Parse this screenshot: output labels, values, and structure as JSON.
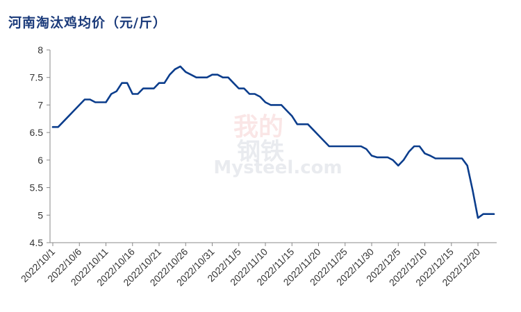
{
  "chart_data": {
    "type": "line",
    "title": "河南淘汰鸡均价（元/斤）",
    "xlabel": "",
    "ylabel": "",
    "ylim": [
      4.5,
      8
    ],
    "yticks": [
      "4.5",
      "5",
      "5.5",
      "6",
      "6.5",
      "7",
      "7.5",
      "8"
    ],
    "xticks": [
      "2022/10/1",
      "2022/10/6",
      "2022/10/11",
      "2022/10/16",
      "2022/10/21",
      "2022/10/26",
      "2022/10/31",
      "2022/11/5",
      "2022/11/10",
      "2022/11/15",
      "2022/11/20",
      "2022/11/25",
      "2022/11/30",
      "2022/12/5",
      "2022/12/10",
      "2022/12/15",
      "2022/12/20"
    ],
    "grid": false,
    "legend": "none",
    "watermark": {
      "top": "我的",
      "middle": "钢铁",
      "bottom": "Mysteel.com"
    },
    "series": [
      {
        "color": "#0b3d8c",
        "x": [
          "2022/10/1",
          "2022/10/2",
          "2022/10/3",
          "2022/10/4",
          "2022/10/5",
          "2022/10/6",
          "2022/10/7",
          "2022/10/8",
          "2022/10/9",
          "2022/10/10",
          "2022/10/11",
          "2022/10/12",
          "2022/10/13",
          "2022/10/14",
          "2022/10/15",
          "2022/10/16",
          "2022/10/17",
          "2022/10/18",
          "2022/10/19",
          "2022/10/20",
          "2022/10/21",
          "2022/10/22",
          "2022/10/23",
          "2022/10/24",
          "2022/10/25",
          "2022/10/26",
          "2022/10/27",
          "2022/10/28",
          "2022/10/29",
          "2022/10/30",
          "2022/10/31",
          "2022/11/1",
          "2022/11/2",
          "2022/11/3",
          "2022/11/4",
          "2022/11/5",
          "2022/11/6",
          "2022/11/7",
          "2022/11/8",
          "2022/11/9",
          "2022/11/10",
          "2022/11/11",
          "2022/11/12",
          "2022/11/13",
          "2022/11/14",
          "2022/11/15",
          "2022/11/16",
          "2022/11/17",
          "2022/11/18",
          "2022/11/19",
          "2022/11/20",
          "2022/11/21",
          "2022/11/22",
          "2022/11/23",
          "2022/11/24",
          "2022/11/25",
          "2022/11/26",
          "2022/11/27",
          "2022/11/28",
          "2022/11/29",
          "2022/11/30",
          "2022/12/1",
          "2022/12/2",
          "2022/12/3",
          "2022/12/4",
          "2022/12/5",
          "2022/12/6",
          "2022/12/7",
          "2022/12/8",
          "2022/12/9",
          "2022/12/10",
          "2022/12/11",
          "2022/12/12",
          "2022/12/13",
          "2022/12/14",
          "2022/12/15",
          "2022/12/16",
          "2022/12/17",
          "2022/12/18",
          "2022/12/19",
          "2022/12/20",
          "2022/12/21",
          "2022/12/22",
          "2022/12/23"
        ],
        "values": [
          6.6,
          6.6,
          6.7,
          6.8,
          6.9,
          7.0,
          7.1,
          7.1,
          7.05,
          7.05,
          7.05,
          7.2,
          7.25,
          7.4,
          7.4,
          7.2,
          7.2,
          7.3,
          7.3,
          7.3,
          7.4,
          7.4,
          7.55,
          7.65,
          7.7,
          7.6,
          7.55,
          7.5,
          7.5,
          7.5,
          7.55,
          7.55,
          7.5,
          7.5,
          7.4,
          7.3,
          7.3,
          7.2,
          7.2,
          7.15,
          7.05,
          7.0,
          7.0,
          7.0,
          6.9,
          6.8,
          6.65,
          6.65,
          6.65,
          6.55,
          6.45,
          6.35,
          6.25,
          6.25,
          6.25,
          6.25,
          6.25,
          6.25,
          6.25,
          6.2,
          6.08,
          6.05,
          6.05,
          6.05,
          6.0,
          5.9,
          6.0,
          6.15,
          6.25,
          6.25,
          6.12,
          6.08,
          6.03,
          6.03,
          6.03,
          6.03,
          6.03,
          6.03,
          5.9,
          5.45,
          4.95,
          5.02,
          5.02,
          5.02
        ]
      }
    ]
  }
}
